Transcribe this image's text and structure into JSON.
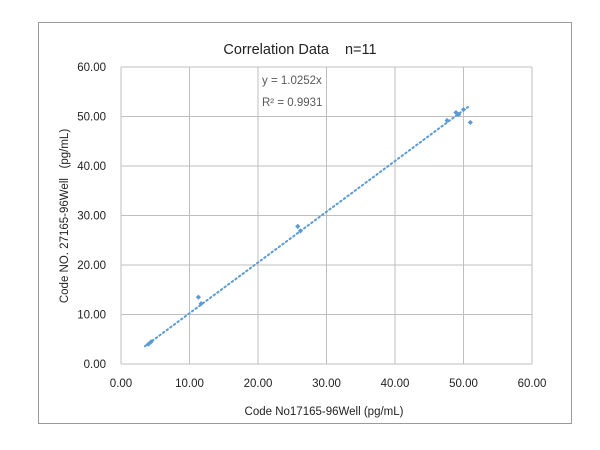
{
  "chart_data": {
    "type": "scatter",
    "title": "Correlation Data",
    "title_suffix": "n=11",
    "xlabel": "Code No17165-96Well (pg/mL)",
    "ylabel": "Code NO. 27165-96Well   (pg/mL)",
    "xlim": [
      0,
      60
    ],
    "ylim": [
      0,
      60
    ],
    "x_ticks": [
      "0.00",
      "10.00",
      "20.00",
      "30.00",
      "40.00",
      "50.00",
      "60.00"
    ],
    "y_ticks": [
      "0.00",
      "10.00",
      "20.00",
      "30.00",
      "40.00",
      "50.00",
      "60.00"
    ],
    "grid": true,
    "legend": "none",
    "series": [
      {
        "points": [
          {
            "x": 4.0,
            "y": 4.0
          },
          {
            "x": 4.4,
            "y": 4.5
          },
          {
            "x": 11.3,
            "y": 13.5
          },
          {
            "x": 11.7,
            "y": 12.2
          },
          {
            "x": 25.8,
            "y": 27.8
          },
          {
            "x": 26.2,
            "y": 26.9
          },
          {
            "x": 47.6,
            "y": 49.2
          },
          {
            "x": 48.9,
            "y": 50.8
          },
          {
            "x": 49.3,
            "y": 50.4
          },
          {
            "x": 50.0,
            "y": 51.4
          },
          {
            "x": 51.0,
            "y": 48.8
          }
        ],
        "color": "#5b9bd5"
      }
    ],
    "trendline": {
      "slope": 1.0252,
      "x_range": [
        3.5,
        51.0
      ],
      "equation_label": "y = 1.0252x",
      "r2_label": "R² = 0.9931",
      "color": "#5b9bd5",
      "style": "dotted"
    }
  }
}
